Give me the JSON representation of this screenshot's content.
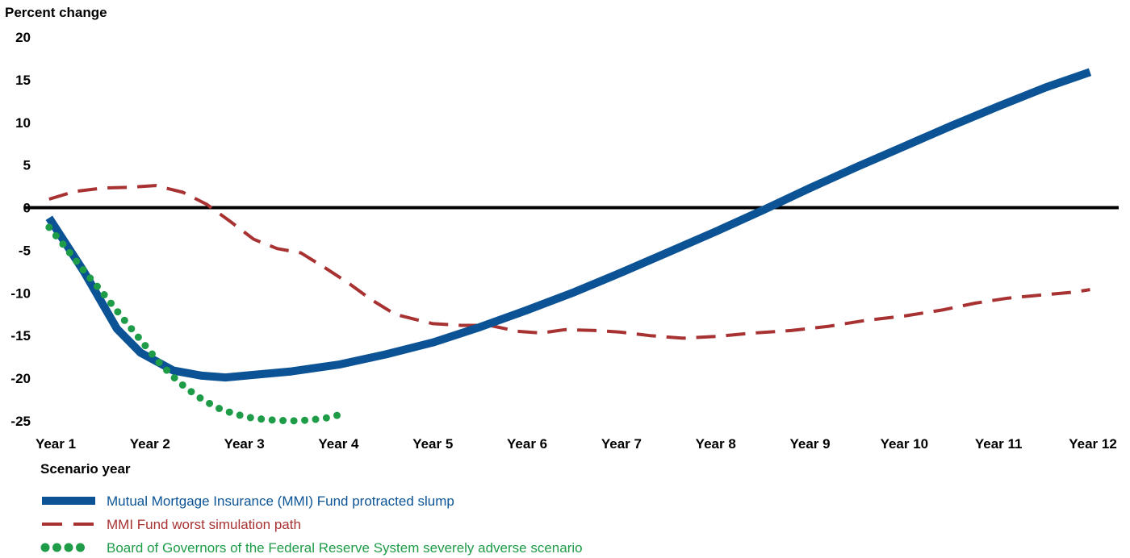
{
  "chart_data": {
    "type": "line",
    "ylabel": "Percent change",
    "xlabel": "Scenario year",
    "ylim": [
      -25,
      20
    ],
    "yticks": [
      20,
      15,
      10,
      5,
      0,
      -5,
      -10,
      -15,
      -20,
      -25
    ],
    "categories": [
      "Year 1",
      "Year 2",
      "Year 3",
      "Year 4",
      "Year 5",
      "Year 6",
      "Year 7",
      "Year 8",
      "Year 9",
      "Year 10",
      "Year 11",
      "Year 12"
    ],
    "xlim": [
      1,
      12
    ],
    "grid": false,
    "legend_position": "bottom-left",
    "series": [
      {
        "name": "Mutual Mortgage Insurance (MMI) Fund protracted slump",
        "style": "solid",
        "color": "#0b5394",
        "points": [
          [
            0.93,
            -1.2
          ],
          [
            1.3,
            -7.5
          ],
          [
            1.65,
            -14.2
          ],
          [
            1.9,
            -17.0
          ],
          [
            2.25,
            -19.1
          ],
          [
            2.55,
            -19.7
          ],
          [
            2.8,
            -19.9
          ],
          [
            3.1,
            -19.6
          ],
          [
            3.5,
            -19.2
          ],
          [
            4.0,
            -18.4
          ],
          [
            4.5,
            -17.2
          ],
          [
            5.0,
            -15.8
          ],
          [
            5.5,
            -14.0
          ],
          [
            6.0,
            -12.0
          ],
          [
            6.5,
            -9.9
          ],
          [
            7.0,
            -7.6
          ],
          [
            7.5,
            -5.2
          ],
          [
            8.0,
            -2.8
          ],
          [
            8.5,
            -0.3
          ],
          [
            9.0,
            2.3
          ],
          [
            9.5,
            4.8
          ],
          [
            10.0,
            7.2
          ],
          [
            10.5,
            9.6
          ],
          [
            11.0,
            11.9
          ],
          [
            11.5,
            14.1
          ],
          [
            11.97,
            15.9
          ]
        ]
      },
      {
        "name": "MMI Fund worst simulation path",
        "style": "dashed",
        "color": "#a83232",
        "points": [
          [
            0.93,
            1.0
          ],
          [
            1.2,
            1.9
          ],
          [
            1.5,
            2.3
          ],
          [
            1.8,
            2.4
          ],
          [
            2.06,
            2.6
          ],
          [
            2.35,
            1.8
          ],
          [
            2.6,
            0.4
          ],
          [
            2.85,
            -1.6
          ],
          [
            3.1,
            -3.7
          ],
          [
            3.35,
            -4.8
          ],
          [
            3.6,
            -5.3
          ],
          [
            3.85,
            -7.0
          ],
          [
            4.1,
            -8.8
          ],
          [
            4.35,
            -10.8
          ],
          [
            4.6,
            -12.5
          ],
          [
            4.85,
            -13.2
          ],
          [
            5.0,
            -13.6
          ],
          [
            5.3,
            -13.8
          ],
          [
            5.6,
            -13.8
          ],
          [
            5.9,
            -14.5
          ],
          [
            6.15,
            -14.7
          ],
          [
            6.4,
            -14.3
          ],
          [
            6.75,
            -14.4
          ],
          [
            7.0,
            -14.6
          ],
          [
            7.3,
            -15.0
          ],
          [
            7.65,
            -15.3
          ],
          [
            8.0,
            -15.1
          ],
          [
            8.4,
            -14.7
          ],
          [
            8.8,
            -14.4
          ],
          [
            9.2,
            -13.9
          ],
          [
            9.6,
            -13.2
          ],
          [
            10.0,
            -12.7
          ],
          [
            10.4,
            -12.0
          ],
          [
            10.75,
            -11.2
          ],
          [
            11.1,
            -10.6
          ],
          [
            11.5,
            -10.2
          ],
          [
            11.8,
            -9.9
          ],
          [
            11.97,
            -9.6
          ]
        ]
      },
      {
        "name": "Board of Governors of the Federal Reserve System severely adverse scenario",
        "style": "dotted",
        "color": "#1e9c48",
        "points": [
          [
            0.93,
            -2.3
          ],
          [
            1.1,
            -4.6
          ],
          [
            1.3,
            -7.4
          ],
          [
            1.5,
            -10.0
          ],
          [
            1.7,
            -12.8
          ],
          [
            1.9,
            -15.5
          ],
          [
            2.1,
            -18.2
          ],
          [
            2.3,
            -20.4
          ],
          [
            2.5,
            -22.1
          ],
          [
            2.7,
            -23.4
          ],
          [
            2.9,
            -24.2
          ],
          [
            3.1,
            -24.7
          ],
          [
            3.3,
            -24.9
          ],
          [
            3.5,
            -25.0
          ],
          [
            3.7,
            -24.9
          ],
          [
            3.9,
            -24.6
          ],
          [
            4.0,
            -24.3
          ]
        ]
      }
    ]
  }
}
